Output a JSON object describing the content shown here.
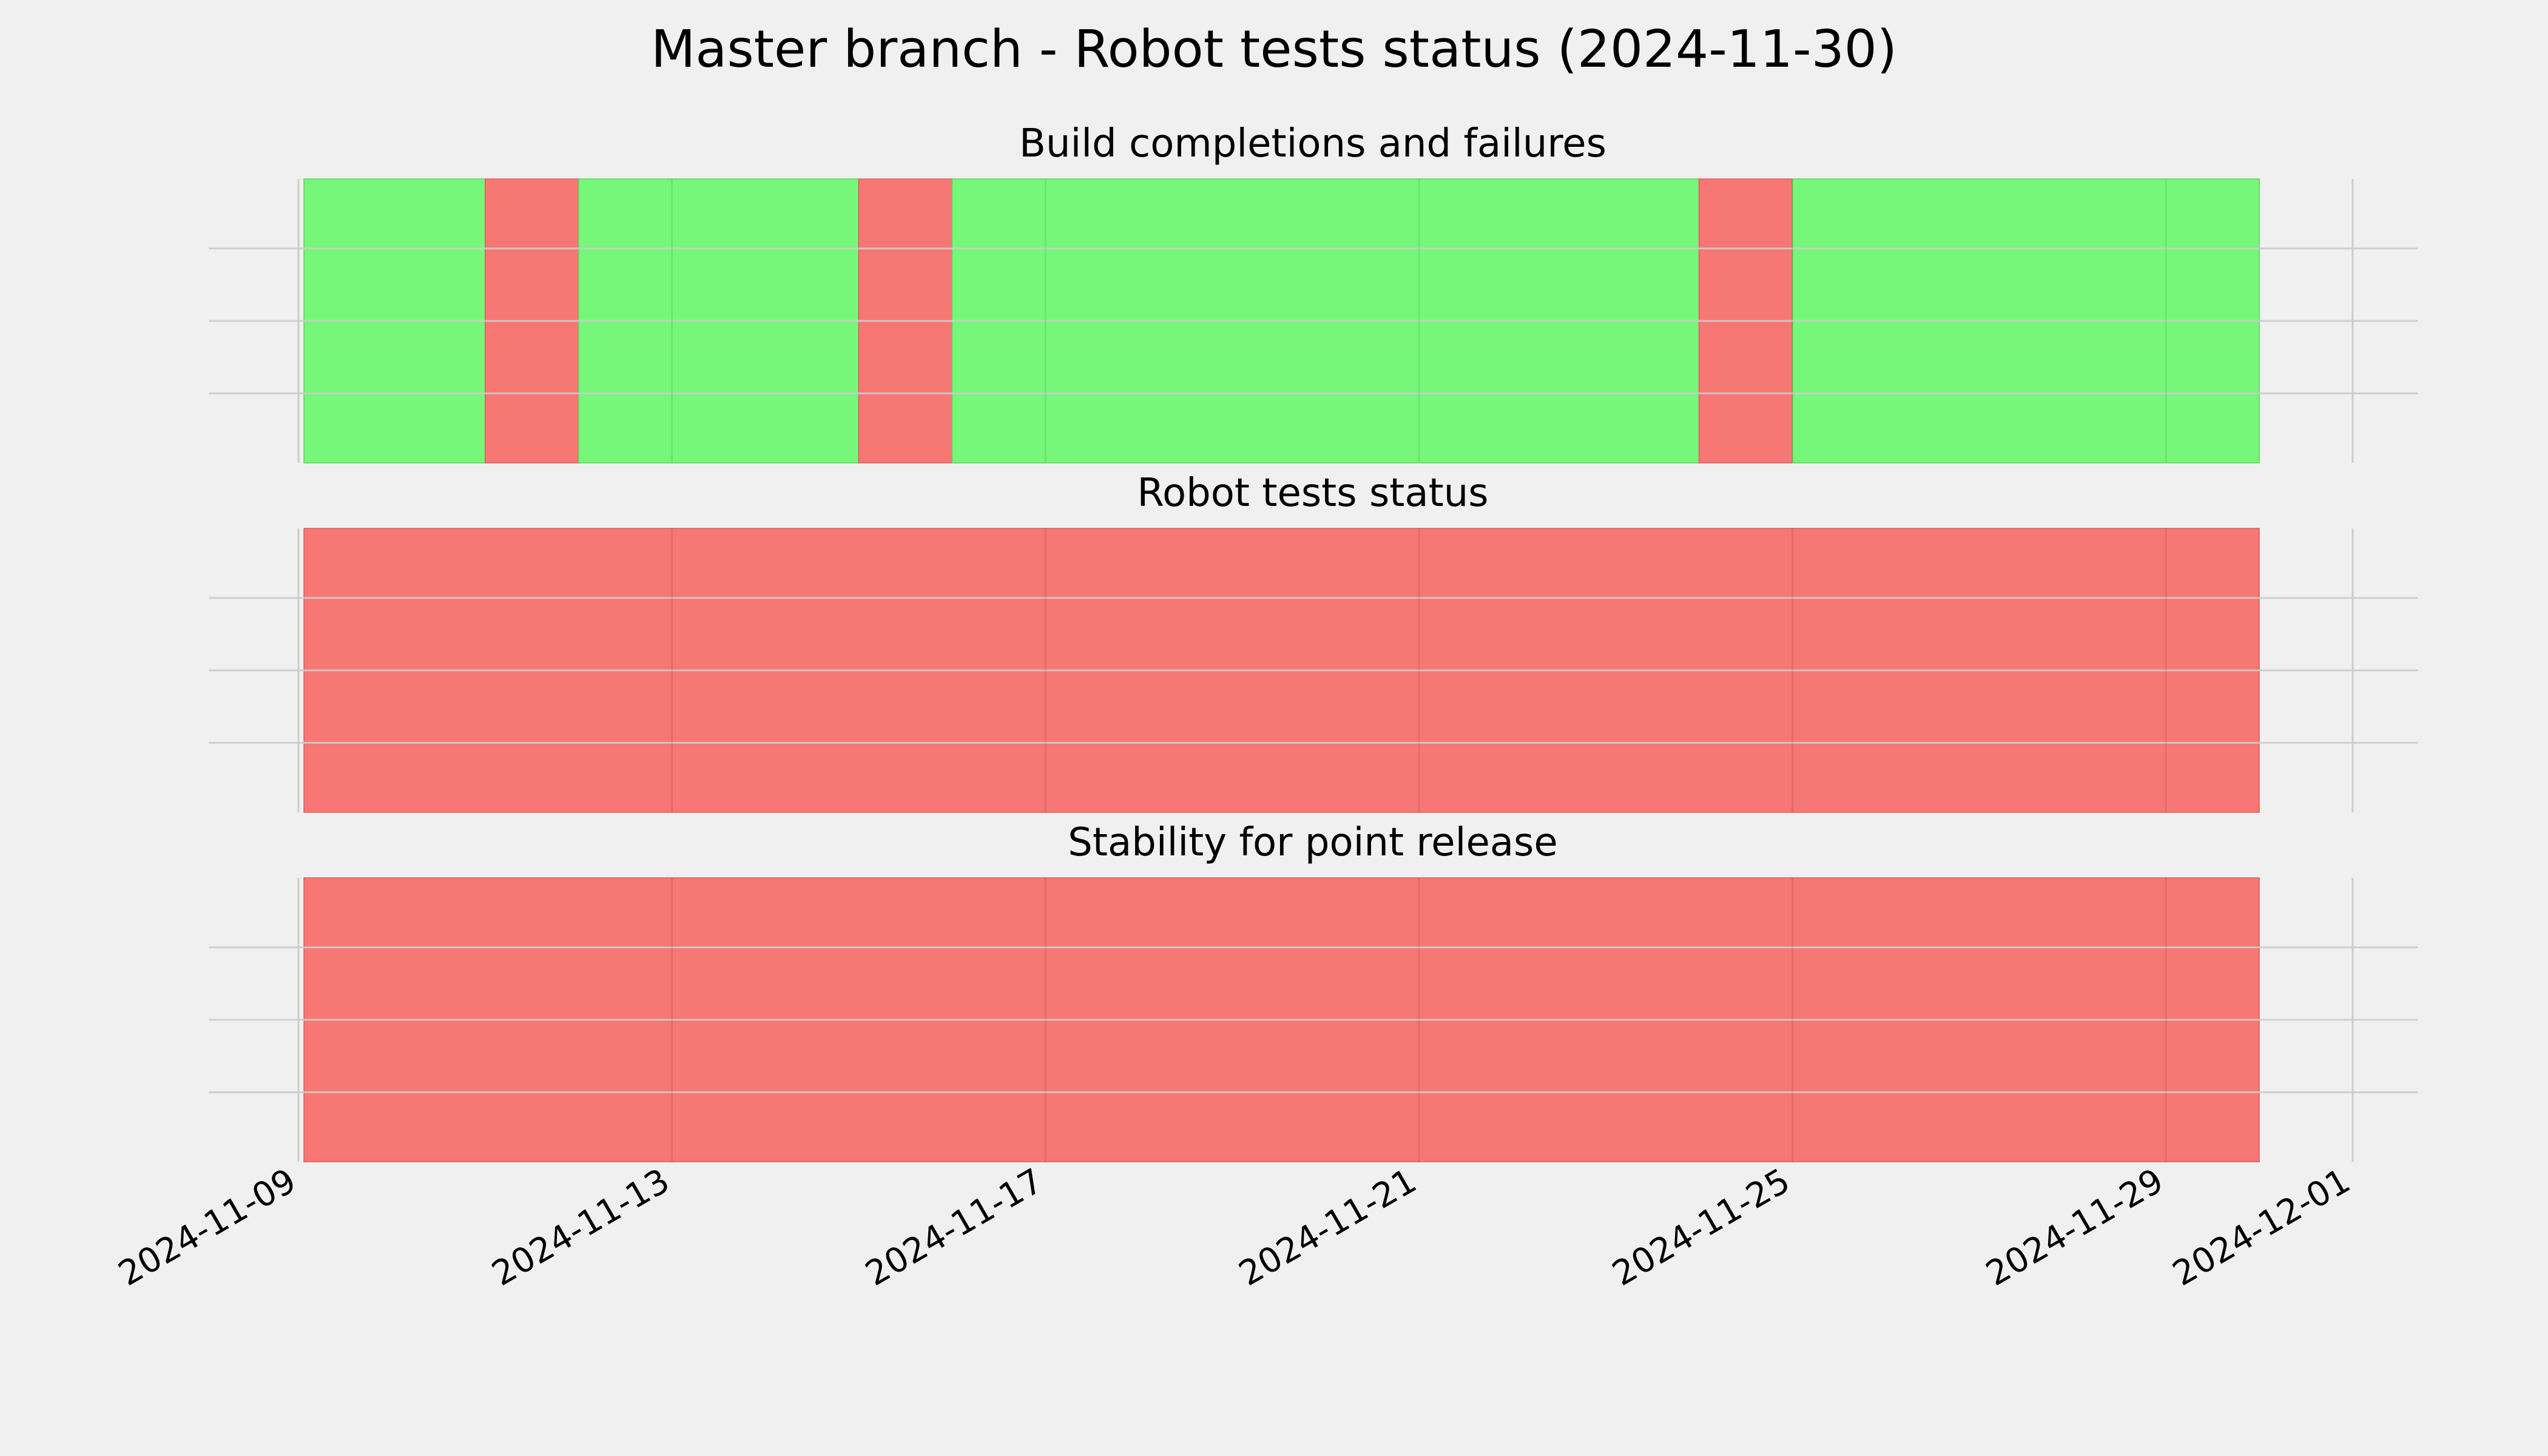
{
  "title": "Master branch - Robot tests status (2024-11-30)",
  "colors": {
    "background": "#f0f0f0",
    "success": "#77f77a",
    "failure": "#f77774",
    "grid": "#cbcbcb"
  },
  "chart_data": [
    {
      "type": "timeline",
      "title": "Build completions and failures",
      "xlim": [
        "2024-11-09",
        "2024-12-01"
      ],
      "x_ticks": [
        "2024-11-09",
        "2024-11-13",
        "2024-11-17",
        "2024-11-21",
        "2024-11-25",
        "2024-11-29",
        "2024-12-01"
      ],
      "segments": [
        {
          "start": "2024-11-09",
          "end": "2024-11-11",
          "status": "success"
        },
        {
          "start": "2024-11-11",
          "end": "2024-11-12",
          "status": "failure"
        },
        {
          "start": "2024-11-12",
          "end": "2024-11-15",
          "status": "success"
        },
        {
          "start": "2024-11-15",
          "end": "2024-11-16",
          "status": "failure"
        },
        {
          "start": "2024-11-16",
          "end": "2024-11-24",
          "status": "success"
        },
        {
          "start": "2024-11-24",
          "end": "2024-11-25",
          "status": "failure"
        },
        {
          "start": "2024-11-25",
          "end": "2024-11-30",
          "status": "success"
        }
      ],
      "grid": true
    },
    {
      "type": "timeline",
      "title": "Robot tests status",
      "xlim": [
        "2024-11-09",
        "2024-12-01"
      ],
      "x_ticks": [
        "2024-11-09",
        "2024-11-13",
        "2024-11-17",
        "2024-11-21",
        "2024-11-25",
        "2024-11-29",
        "2024-12-01"
      ],
      "segments": [
        {
          "start": "2024-11-09",
          "end": "2024-11-30",
          "status": "failure"
        }
      ],
      "grid": true
    },
    {
      "type": "timeline",
      "title": "Stability for point release",
      "xlim": [
        "2024-11-09",
        "2024-12-01"
      ],
      "x_ticks": [
        "2024-11-09",
        "2024-11-13",
        "2024-11-17",
        "2024-11-21",
        "2024-11-25",
        "2024-11-29",
        "2024-12-01"
      ],
      "segments": [
        {
          "start": "2024-11-09",
          "end": "2024-11-30",
          "status": "failure"
        }
      ],
      "grid": true
    }
  ]
}
